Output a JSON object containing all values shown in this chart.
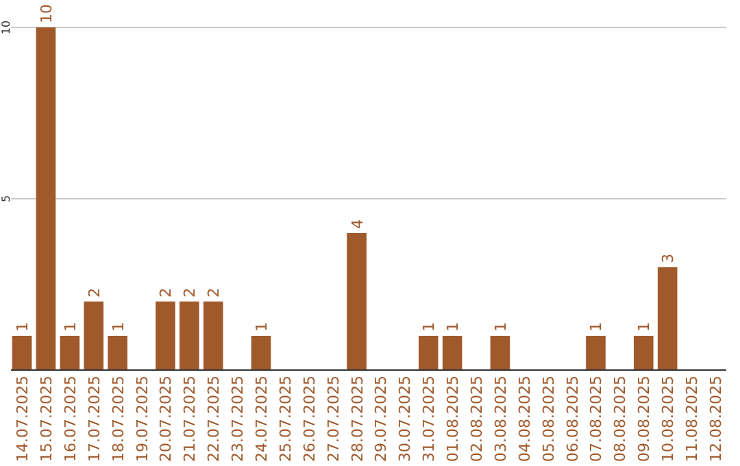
{
  "chart_data": {
    "type": "bar",
    "categories": [
      "14.07.2025",
      "15.07.2025",
      "16.07.2025",
      "17.07.2025",
      "18.07.2025",
      "19.07.2025",
      "20.07.2025",
      "21.07.2025",
      "22.07.2025",
      "23.07.2025",
      "24.07.2025",
      "25.07.2025",
      "26.07.2025",
      "27.07.2025",
      "28.07.2025",
      "29.07.2025",
      "30.07.2025",
      "31.07.2025",
      "01.08.2025",
      "02.08.2025",
      "03.08.2025",
      "04.08.2025",
      "05.08.2025",
      "06.08.2025",
      "07.08.2025",
      "08.08.2025",
      "09.08.2025",
      "10.08.2025",
      "11.08.2025",
      "12.08.2025"
    ],
    "values": [
      1,
      10,
      1,
      2,
      1,
      0,
      2,
      2,
      2,
      0,
      1,
      0,
      0,
      0,
      4,
      0,
      0,
      1,
      1,
      0,
      1,
      0,
      0,
      0,
      1,
      0,
      1,
      3,
      0,
      0
    ],
    "value_labels": [
      "1",
      "10",
      "1",
      "2",
      "1",
      null,
      "2",
      "2",
      "2",
      null,
      "1",
      null,
      null,
      null,
      "4",
      null,
      null,
      "1",
      "1",
      null,
      "1",
      null,
      null,
      null,
      "1",
      null,
      "1",
      "3",
      null,
      null
    ],
    "color": "#a0592b",
    "ylim": [
      0,
      10
    ],
    "yticks": [
      5,
      10
    ],
    "grid": "y"
  }
}
